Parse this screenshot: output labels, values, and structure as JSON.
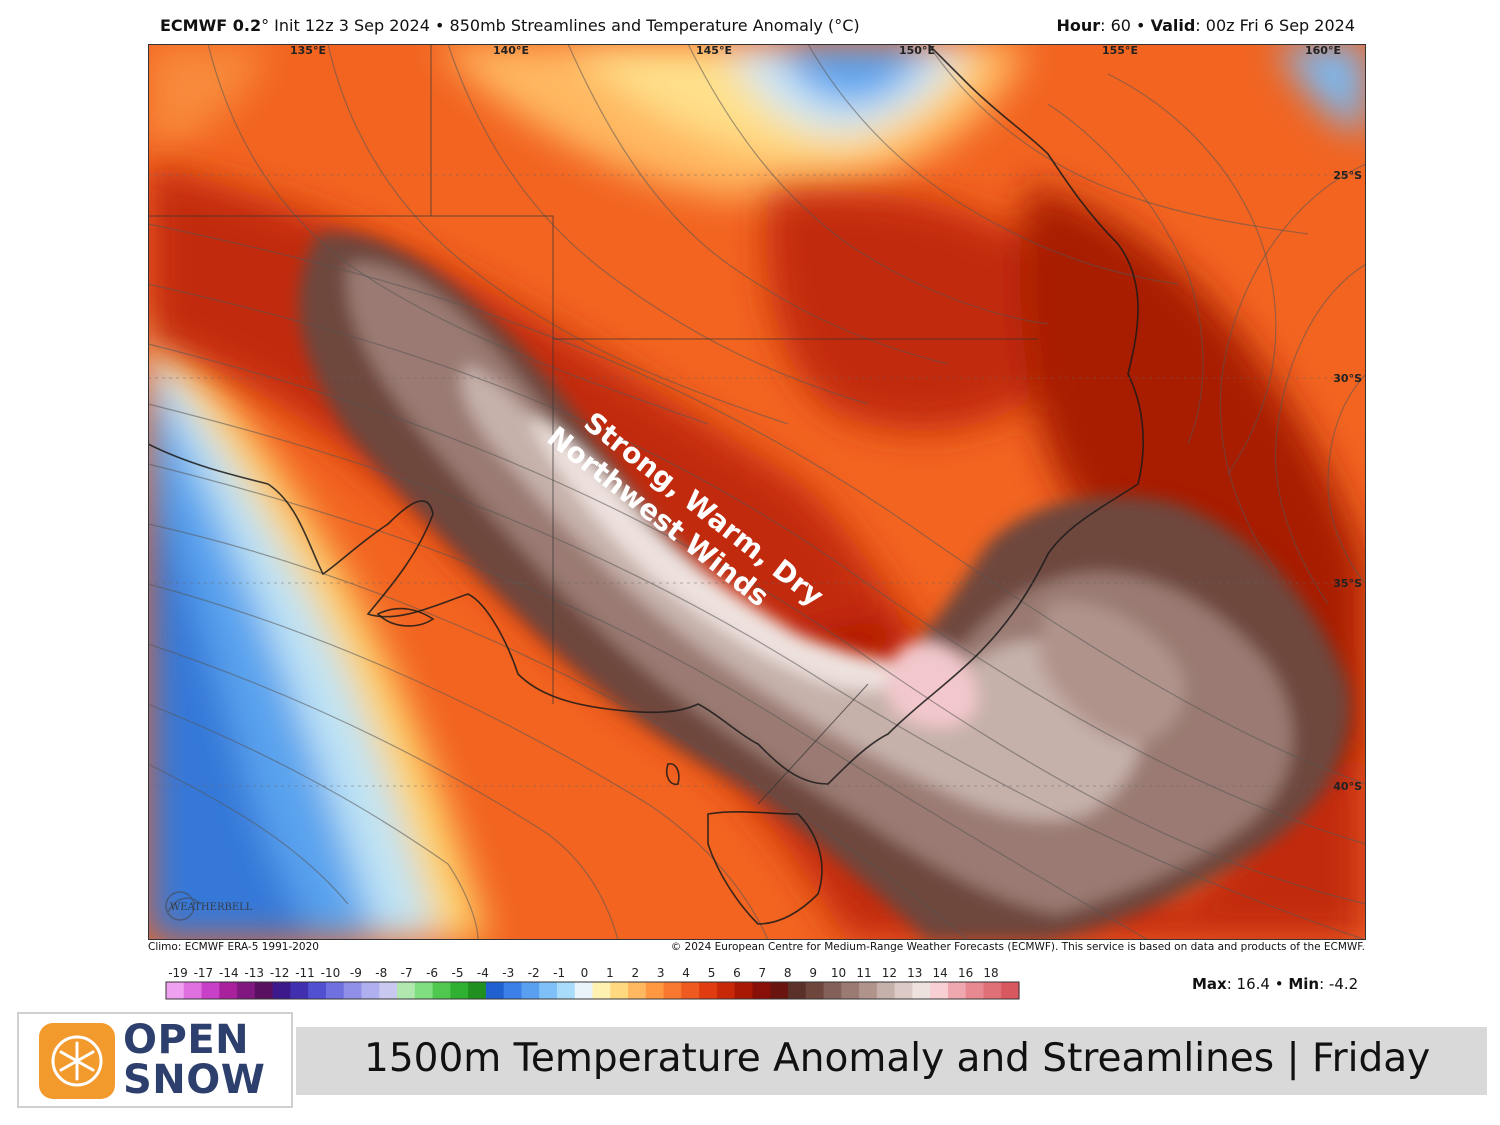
{
  "header": {
    "model": "ECMWF 0.2",
    "model_degree": "°",
    "init_text": " Init 12z 3 Sep 2024 • 850mb Streamlines and Temperature Anomaly (°C)",
    "hour_label": "Hour",
    "hour_value": ": 60 • ",
    "valid_label": "Valid",
    "valid_value": ": 00z Fri 6 Sep 2024"
  },
  "map": {
    "longitude_labels": [
      "135°E",
      "140°E",
      "145°E",
      "150°E",
      "155°E",
      "160°E"
    ],
    "latitude_labels": [
      "25°S",
      "30°S",
      "35°S",
      "40°S"
    ],
    "annotation_line1": "Strong, Warm, Dry",
    "annotation_line2": "Northwest Winds",
    "watermark": "WEATHERBELL"
  },
  "footer": {
    "climo": "Climo: ECMWF ERA-5 1991-2020",
    "copyright": "© 2024 European Centre for Medium-Range Weather Forecasts (ECMWF). This service is based on data and products of the ECMWF."
  },
  "colorbar": {
    "labels": [
      "-19",
      "-17",
      "-14",
      "-13",
      "-12",
      "-11",
      "-10",
      "-9",
      "-8",
      "-7",
      "-6",
      "-5",
      "-4",
      "-3",
      "-2",
      "-1",
      "0",
      "1",
      "2",
      "3",
      "4",
      "5",
      "6",
      "7",
      "8",
      "9",
      "10",
      "11",
      "12",
      "13",
      "14",
      "16",
      "18"
    ],
    "colors": [
      "#f0a0f0",
      "#e070e0",
      "#c840c8",
      "#a8209c",
      "#801880",
      "#5a1060",
      "#3c1a8c",
      "#4030b0",
      "#5050d0",
      "#7070e0",
      "#9090e8",
      "#b0b0f0",
      "#c8c8f0",
      "#b0e8b0",
      "#80e080",
      "#50c850",
      "#30b030",
      "#209020",
      "#2060d0",
      "#3a80e8",
      "#5aa0f0",
      "#80c0f8",
      "#a8dcfa",
      "#e8f4fa",
      "#fff2b0",
      "#ffd880",
      "#ffb860",
      "#ff9840",
      "#f87830",
      "#ee5a20",
      "#e03c10",
      "#c82808",
      "#a81804",
      "#881008",
      "#6a1410",
      "#5a3028",
      "#6e463c",
      "#84605a",
      "#9a7a72",
      "#b0948c",
      "#c6b0aa",
      "#dccac6",
      "#eee2de",
      "#f8d0d4",
      "#f0a8b0",
      "#e88890",
      "#e07078",
      "#d85860"
    ],
    "max_label": "Max",
    "max_value": ": 16.4 • ",
    "min_label": "Min",
    "min_value": ": -4.2"
  },
  "banner": {
    "title": "1500m Temperature Anomaly and Streamlines | Friday",
    "logo_line1": "OPEN",
    "logo_line2": "SNOW"
  }
}
